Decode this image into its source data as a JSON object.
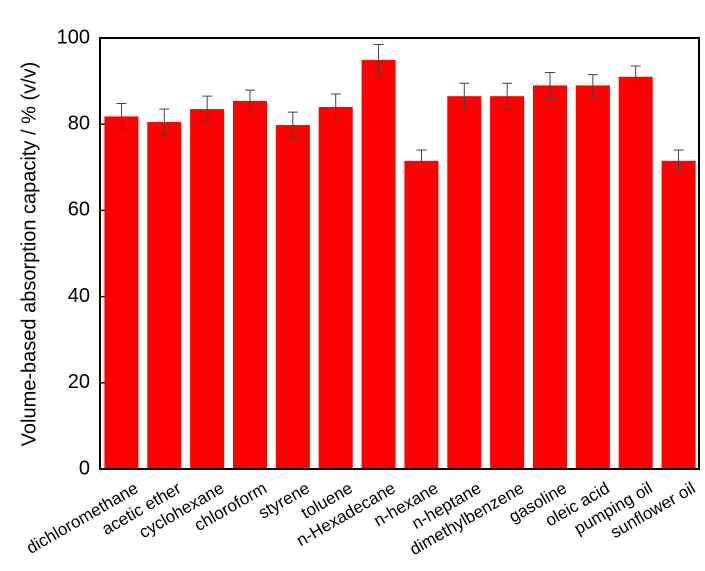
{
  "chart_data": {
    "type": "bar",
    "y_label": "Volume-based absorption capacity / % (v/v)",
    "categories": [
      "dichloromethane",
      "acetic ether",
      "cyclohexane",
      "chloroform",
      "styrene",
      "toluene",
      "n-Hexadecane",
      "n-hexane",
      "n-heptane",
      "dimethylbenzene",
      "gasoline",
      "oleic acid",
      "pumping oil",
      "sunflower oil"
    ],
    "values": [
      81.8,
      80.5,
      83.5,
      85.4,
      79.8,
      84,
      94.9,
      71.5,
      86.5,
      86.5,
      89,
      89,
      91,
      71.5
    ],
    "errors": [
      3,
      3,
      3,
      2.5,
      3,
      3,
      3.6,
      2.5,
      3,
      3,
      3,
      2.5,
      2.5,
      2.5
    ],
    "color": "#ff0000",
    "ylim": [
      0,
      100
    ],
    "yticks": [
      0,
      20,
      40,
      60,
      80,
      100
    ]
  }
}
